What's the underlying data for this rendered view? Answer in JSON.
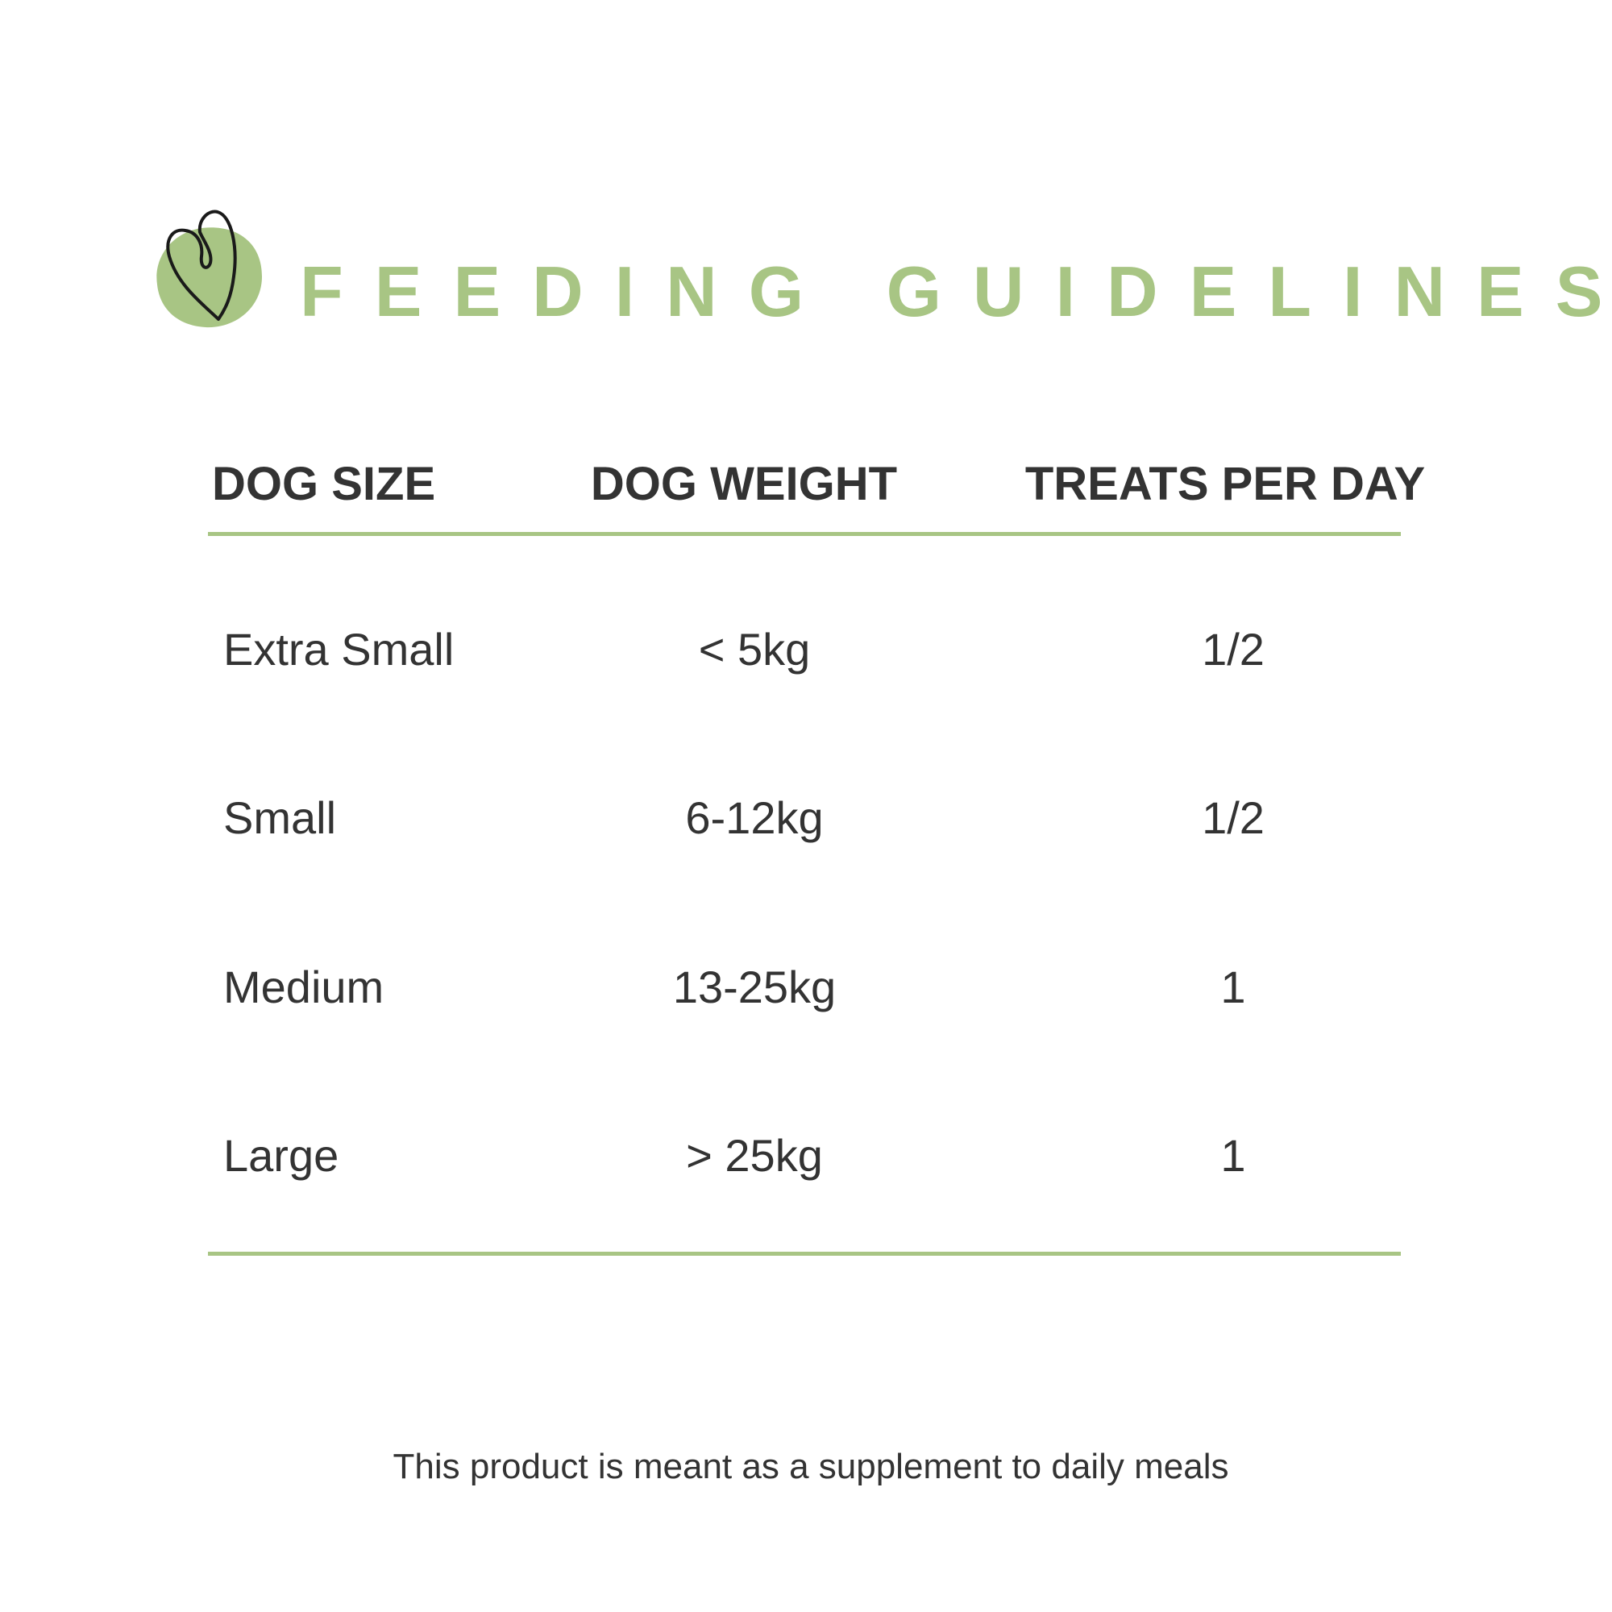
{
  "title": "FEEDING GUIDELINES",
  "colors": {
    "accent": "#a8c584",
    "text": "#333333"
  },
  "logo": {
    "icon": "heart-on-green-blob-icon"
  },
  "table": {
    "headers": [
      "DOG SIZE",
      "DOG WEIGHT",
      "TREATS PER DAY"
    ],
    "rows": [
      {
        "size": "Extra Small",
        "weight": "< 5kg",
        "treats": "1/2"
      },
      {
        "size": "Small",
        "weight": "6-12kg",
        "treats": "1/2"
      },
      {
        "size": "Medium",
        "weight": "13-25kg",
        "treats": "1"
      },
      {
        "size": "Large",
        "weight": "> 25kg",
        "treats": "1"
      }
    ]
  },
  "footer": "This product is meant as a supplement to daily meals"
}
